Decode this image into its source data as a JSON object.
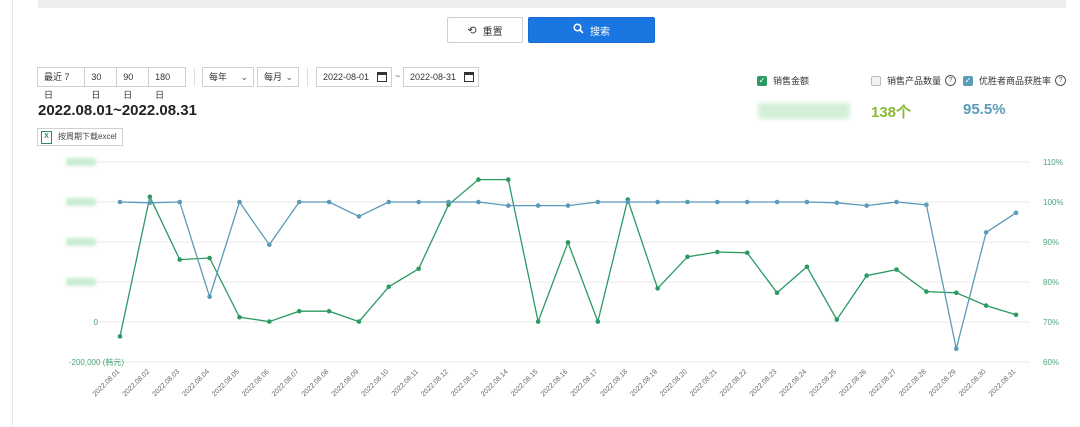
{
  "buttons": {
    "reset_label": "重置",
    "search_label": "搜索"
  },
  "quick_ranges": [
    "最近 7日",
    "30日",
    "90日",
    "180日"
  ],
  "dropdowns": {
    "year": "每年",
    "month": "每月"
  },
  "date_range": {
    "start": "2022-08-01",
    "separator": "~",
    "end": "2022-08-31"
  },
  "period_title": "2022.08.01~2022.08.31",
  "excel_button": "按周期下载excel",
  "legend": {
    "sales": "销售金额",
    "product_count": "销售产品数量",
    "win_rate": "优胜者商品获胜率"
  },
  "stats": {
    "product_count": "138个",
    "win_rate": "95.5%"
  },
  "colors": {
    "sales": "#2a9a62",
    "win_rate": "#5b9ab8",
    "product_count": "#8ab832",
    "search_button": "#1a76e0"
  },
  "chart_data": {
    "type": "line",
    "x": [
      "2022.08.01",
      "2022.08.02",
      "2022.08.03",
      "2022.08.04",
      "2022.08.05",
      "2022.08.06",
      "2022.08.07",
      "2022.08.08",
      "2022.08.09",
      "2022.08.10",
      "2022.08.11",
      "2022.08.12",
      "2022.08.13",
      "2022.08.14",
      "2022.08.15",
      "2022.08.16",
      "2022.08.17",
      "2022.08.18",
      "2022.08.19",
      "2022.08.20",
      "2022.08.21",
      "2022.08.22",
      "2022.08.23",
      "2022.08.24",
      "2022.08.25",
      "2022.08.26",
      "2022.08.27",
      "2022.08.28",
      "2022.08.29",
      "2022.08.30",
      "2022.08.31"
    ],
    "left_axis": {
      "ticks": [
        "-200,000 (韩元)"
      ]
    },
    "right_axis": {
      "ticks": [
        "110%",
        "100%",
        "90%",
        "80%",
        "70%",
        "60%"
      ],
      "range": [
        60,
        110
      ]
    },
    "series": [
      {
        "name": "销售金额",
        "axis": "left",
        "color": "#2a9a62",
        "relative_values": [
          66.4,
          101.3,
          85.6,
          86.0,
          71.2,
          70.1,
          72.7,
          72.7,
          70.1,
          78.8,
          83.3,
          99.3,
          105.6,
          105.6,
          70.1,
          89.9,
          70.1,
          100.6,
          78.4,
          86.3,
          87.5,
          87.3,
          77.3,
          83.8,
          70.6,
          81.6,
          83.1,
          77.6,
          77.3,
          74.1,
          71.8
        ]
      },
      {
        "name": "优胜者商品获胜率",
        "axis": "right",
        "color": "#5b9ab8",
        "values": [
          100.0,
          99.8,
          100.0,
          76.3,
          100.0,
          89.3,
          100.0,
          100.0,
          96.4,
          100.0,
          100.0,
          100.0,
          100.0,
          99.1,
          99.1,
          99.1,
          100.0,
          100.0,
          100.0,
          100.0,
          100.0,
          100.0,
          100.0,
          100.0,
          99.8,
          99.1,
          100.0,
          99.3,
          63.3,
          92.4,
          97.3
        ]
      }
    ]
  }
}
